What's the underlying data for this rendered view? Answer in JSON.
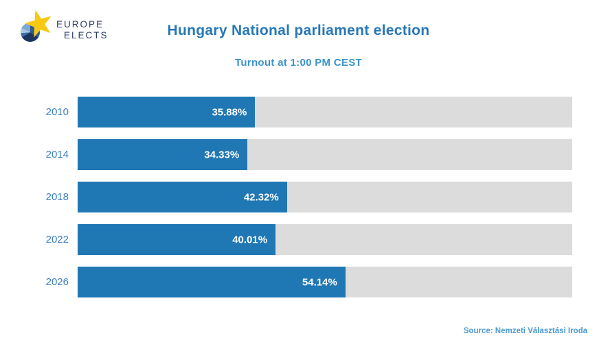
{
  "logo": {
    "line1": "EUROPE",
    "line2": "ELECTS"
  },
  "chart_data": {
    "type": "bar",
    "orientation": "horizontal",
    "title": "Hungary National parliament election",
    "subtitle": "Turnout at 1:00 PM CEST",
    "categories": [
      "2010",
      "2014",
      "2018",
      "2022",
      "2026"
    ],
    "values": [
      35.88,
      34.33,
      42.32,
      40.01,
      54.14
    ],
    "value_labels": [
      "35.88%",
      "34.33%",
      "42.32%",
      "40.01%",
      "54.14%"
    ],
    "xlim": [
      0,
      100
    ],
    "grid": false,
    "legend": false,
    "bar_color": "#1f77b4",
    "track_color": "#dcdcdc",
    "value_label_color": "#ffffff",
    "category_label_color": "#3c7ebf"
  },
  "footer": {
    "source": "Source: Nemzeti Választási Iroda"
  }
}
